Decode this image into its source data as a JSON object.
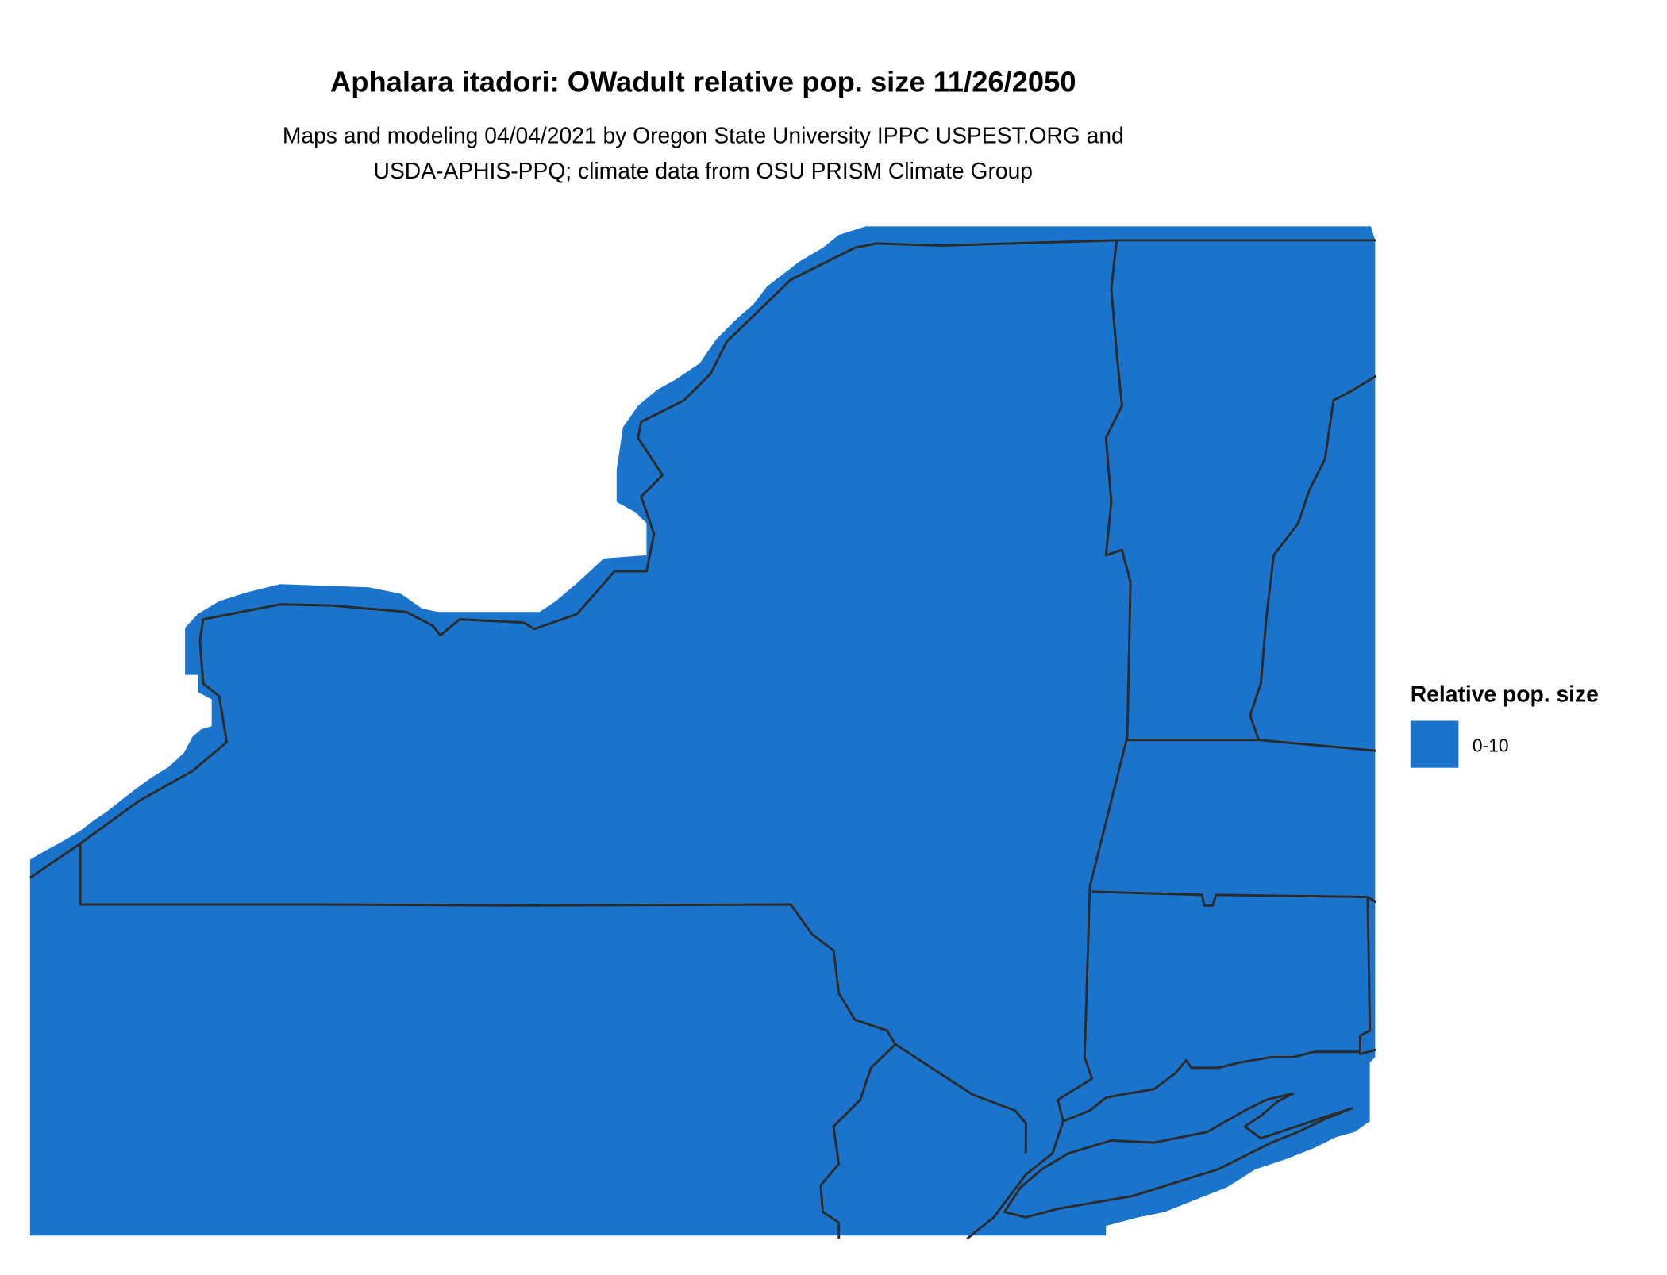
{
  "title": "Aphalara itadori: OWadult relative pop. size 11/26/2050",
  "subtitle": {
    "line1": "Maps and modeling 04/04/2021 by Oregon State University IPPC USPEST.ORG and",
    "line2": "USDA-APHIS-PPQ; climate data from OSU PRISM Climate Group"
  },
  "legend": {
    "title": "Relative pop. size",
    "items": [
      {
        "label": "0-10",
        "color": "#1b74cc"
      }
    ]
  },
  "map": {
    "fill_color": "#1b74cc",
    "border_color": "#2b2b2b",
    "background": "#ffffff"
  }
}
